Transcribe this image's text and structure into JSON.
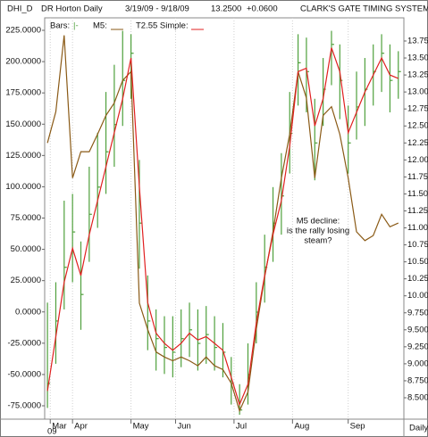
{
  "header": {
    "symbol": "DHI_D",
    "name": "DR Horton Daily",
    "range": "3/19/09 - 9/18/09",
    "last": "13.2500",
    "change": "+0.0600",
    "system": "CLARK'S GATE TIMING SYSTEM ©"
  },
  "chart_data": {
    "type": "stock",
    "x": [
      0,
      3,
      6,
      9,
      12,
      15,
      18,
      21,
      24,
      27,
      30,
      33,
      36,
      39,
      42,
      45,
      48,
      51,
      54,
      57,
      60,
      63,
      66,
      69,
      72,
      75,
      78,
      81,
      84,
      87,
      90,
      93,
      96,
      99,
      102,
      105,
      108,
      111,
      114,
      117,
      120,
      123,
      126
    ],
    "xlim": [
      -1,
      128
    ],
    "xticks": [
      {
        "value": 1,
        "label": "Mar"
      },
      {
        "value": 9,
        "label": "Apr"
      },
      {
        "value": 30,
        "label": "May"
      },
      {
        "value": 46,
        "label": "Jun"
      },
      {
        "value": 67,
        "label": "Jul"
      },
      {
        "value": 88,
        "label": "Aug"
      },
      {
        "value": 108,
        "label": "Sep"
      }
    ],
    "x_year": "09",
    "x_caption": "Daily",
    "ylim": [
      -85.69,
      234.98
    ],
    "yticks": [
      {
        "value": 225,
        "label": "225.0000"
      },
      {
        "value": 200,
        "label": "200.0000"
      },
      {
        "value": 175,
        "label": "175.0000"
      },
      {
        "value": 150,
        "label": "150.0000"
      },
      {
        "value": 125,
        "label": "125.0000"
      },
      {
        "value": 100,
        "label": "100.0000"
      },
      {
        "value": 75,
        "label": "75.0000"
      },
      {
        "value": 50,
        "label": "50.0000"
      },
      {
        "value": 25,
        "label": "25.0000"
      },
      {
        "value": 0,
        "label": "0.0000"
      },
      {
        "value": -25,
        "label": "-25.0000"
      },
      {
        "value": -50,
        "label": "-50.0000"
      },
      {
        "value": -75,
        "label": "-75.0000"
      }
    ],
    "y2lim": [
      8.185,
      14.091
    ],
    "y2ticks": [
      {
        "value": 13.75,
        "label": "13.7500"
      },
      {
        "value": 13.5,
        "label": "13.5000"
      },
      {
        "value": 13.25,
        "label": "13.2500"
      },
      {
        "value": 13,
        "label": "13.0000"
      },
      {
        "value": 12.75,
        "label": "12.7500"
      },
      {
        "value": 12.5,
        "label": "12.5000"
      },
      {
        "value": 12.25,
        "label": "12.2500"
      },
      {
        "value": 12,
        "label": "12.0000"
      },
      {
        "value": 11.75,
        "label": "11.7500"
      },
      {
        "value": 11.5,
        "label": "11.5000"
      },
      {
        "value": 11.25,
        "label": "11.2500"
      },
      {
        "value": 11,
        "label": "11.0000"
      },
      {
        "value": 10.75,
        "label": "10.7500"
      },
      {
        "value": 10.5,
        "label": "10.5000"
      },
      {
        "value": 10.25,
        "label": "10.2500"
      },
      {
        "value": 10,
        "label": "10.0000"
      },
      {
        "value": 9.75,
        "label": "9.7500"
      },
      {
        "value": 9.5,
        "label": "9.5000"
      },
      {
        "value": 9.25,
        "label": "9.2500"
      },
      {
        "value": 9,
        "label": "9.0000"
      },
      {
        "value": 8.75,
        "label": "8.7500"
      },
      {
        "value": 8.5,
        "label": "8.5000"
      }
    ],
    "annotation": [
      "M5 decline:",
      "is the rally losing",
      "steam?"
    ],
    "series": [
      {
        "name": "Bars:",
        "symbol": "|-",
        "kind": "bars",
        "color": "#4fa03c",
        "axis": "y2",
        "values": [
          8.71,
          9.63,
          10.42,
          10.94,
          10.02,
          11.2,
          11.6,
          12.12,
          12.52,
          13.17,
          13.57,
          11.07,
          9.63,
          9.37,
          9.24,
          9.17,
          9.37,
          9.5,
          9.3,
          9.43,
          9.24,
          9.17,
          8.71,
          8.32,
          8.84,
          9.76,
          10.42,
          11.07,
          11.47,
          12.39,
          13.43,
          13.3,
          12.25,
          13.04,
          13.7,
          13.17,
          12.25,
          12.78,
          13.04,
          13.3,
          13.57,
          13.17,
          13.3
        ],
        "high": [
          9.9,
          10.2,
          11.4,
          11.5,
          10.8,
          11.9,
          12.4,
          13.0,
          13.4,
          13.9,
          13.85,
          12.0,
          10.3,
          9.8,
          9.7,
          9.7,
          9.8,
          9.9,
          9.8,
          9.85,
          9.7,
          9.6,
          9.1,
          8.7,
          9.3,
          10.2,
          10.9,
          11.6,
          12.1,
          13.0,
          13.85,
          13.8,
          12.9,
          13.5,
          13.9,
          13.7,
          12.8,
          13.3,
          13.5,
          13.7,
          13.85,
          13.7,
          13.6
        ],
        "low": [
          8.35,
          9.0,
          9.8,
          10.2,
          9.5,
          10.5,
          11.0,
          11.5,
          11.9,
          12.5,
          12.9,
          10.4,
          9.2,
          8.9,
          8.85,
          8.8,
          8.95,
          9.1,
          8.9,
          9.0,
          8.9,
          8.8,
          8.4,
          8.25,
          8.4,
          9.3,
          9.9,
          10.5,
          10.9,
          11.8,
          12.8,
          12.7,
          11.7,
          12.5,
          13.1,
          12.6,
          11.8,
          12.3,
          12.5,
          12.8,
          13.0,
          12.7,
          12.9
        ]
      },
      {
        "name": "M5:",
        "kind": "line",
        "color": "#8a5a16",
        "values": [
          135,
          160,
          221,
          107,
          128,
          128,
          142,
          157,
          167,
          185,
          192,
          7,
          -14,
          -32,
          -36,
          -39,
          -36,
          -39,
          -43,
          -36,
          -43,
          -46,
          -57,
          -79,
          -64,
          -14,
          28,
          64,
          107,
          142,
          192,
          171,
          107,
          157,
          164,
          142,
          107,
          64,
          57,
          61,
          78,
          68,
          71
        ]
      },
      {
        "name": "T2.55 Simple:",
        "kind": "line",
        "color": "#e02020",
        "axis": "y2",
        "values": [
          8.6,
          9.4,
          10.2,
          10.7,
          10.3,
          10.9,
          11.4,
          11.9,
          12.4,
          12.9,
          13.5,
          11.6,
          9.9,
          9.45,
          9.3,
          9.2,
          9.3,
          9.45,
          9.35,
          9.4,
          9.3,
          9.2,
          8.8,
          8.4,
          8.7,
          9.6,
          10.3,
          10.9,
          11.4,
          12.2,
          13.3,
          13.35,
          12.5,
          12.9,
          13.65,
          13.3,
          12.4,
          12.7,
          13.0,
          13.25,
          13.5,
          13.25,
          13.2
        ]
      }
    ]
  }
}
